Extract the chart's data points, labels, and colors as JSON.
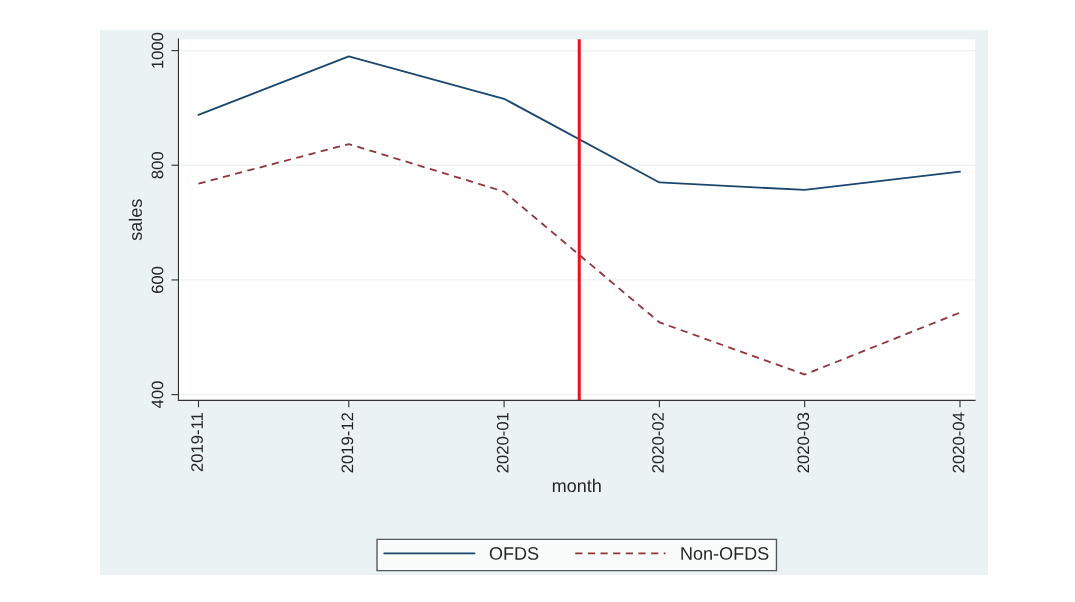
{
  "chart_data": {
    "type": "line",
    "xlabel": "month",
    "ylabel": "sales",
    "x": [
      "2019-11",
      "2019-12",
      "2020-01",
      "2020-02",
      "2020-03",
      "2020-04"
    ],
    "xlim": [
      "2019-10-28",
      "2020-04-04"
    ],
    "xticks": [
      {
        "value": "2019-11",
        "label": "2019-11"
      },
      {
        "value": "2019-12",
        "label": "2019-12"
      },
      {
        "value": "2020-01",
        "label": "2020-01"
      },
      {
        "value": "2020-02",
        "label": "2020-02"
      },
      {
        "value": "2020-03",
        "label": "2020-03"
      },
      {
        "value": "2020-04",
        "label": "2020-04"
      }
    ],
    "series": [
      {
        "name": "OFDS",
        "color": "#1a476f",
        "line_style": "solid",
        "values": [
          888,
          990,
          916,
          770,
          757,
          789
        ]
      },
      {
        "name": "Non-OFDS",
        "color": "#90353b",
        "line_style": "dashed",
        "values": [
          768,
          837,
          754,
          526,
          435,
          543
        ]
      }
    ],
    "ylim": [
      390,
      1020
    ],
    "yticks": [
      400,
      600,
      800,
      1000
    ],
    "ref_lines": [
      {
        "axis": "x",
        "value": "2020-01-16",
        "color": "#e8141c"
      }
    ],
    "grid": "y",
    "legend": "bottom",
    "marker": "none"
  }
}
